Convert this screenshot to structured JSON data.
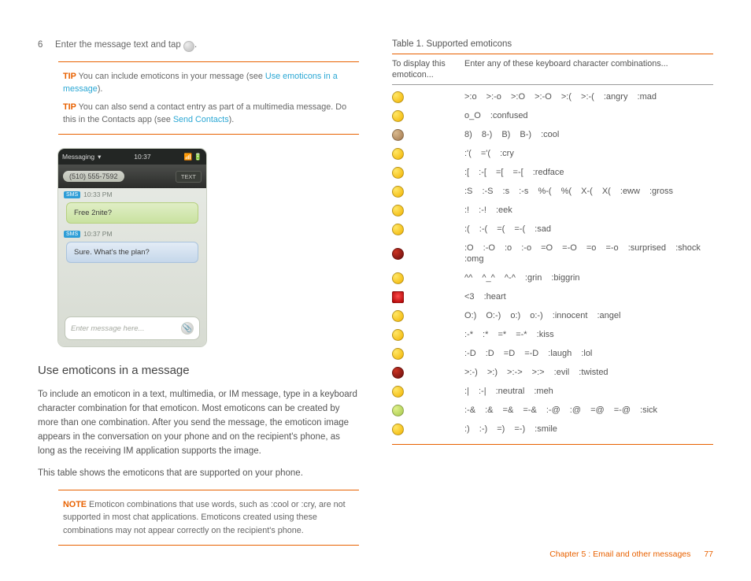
{
  "left": {
    "step_num": "6",
    "step_text_a": "Enter the message text and tap ",
    "step_text_b": ".",
    "tip1": {
      "label": "TIP",
      "text_a": "You can include emoticons in your message (see ",
      "link": "Use emoticons in a message",
      "text_b": ")."
    },
    "tip2": {
      "label": "TIP",
      "text_a": "You can also send a contact entry as part of a multimedia message. Do this in the Contacts app (see ",
      "link": "Send Contacts",
      "text_b": ")."
    },
    "phone": {
      "status_left": "Messaging",
      "time": "10:37",
      "phone_num": "(510) 555-7592",
      "text_btn": "TEXT",
      "ts1": "10:33 PM",
      "bubble1": "Free 2nite?",
      "ts2": "10:37 PM",
      "bubble2": "Sure. What's the plan?",
      "input_placeholder": "Enter message here...",
      "sms_badge": "SMS"
    },
    "section_title": "Use emoticons in a message",
    "para1": "To include an emoticon in a text, multimedia, or IM message, type in a keyboard character combination for that emoticon. Most emoticons can be created by more than one combination. After you send the message, the emoticon image appears in the conversation on your phone and on the recipient's phone, as long as the receiving IM application supports the image.",
    "para2": "This table shows the emoticons that are supported on your phone.",
    "note": {
      "label": "NOTE",
      "text": "Emoticon combinations that use words, such as :cool or :cry, are not supported in most chat applications. Emoticons created using these combinations may not appear correctly on the recipient's phone."
    }
  },
  "right": {
    "table_title": "Table 1.  Supported emoticons",
    "hdr_a": "To display this emoticon...",
    "hdr_b": "Enter any of these keyboard character combinations...",
    "rows": [
      {
        "color": "c-yel",
        "combo": ">:o   >:-o   >:O   >:-O   >:(   >:-(   :angry   :mad"
      },
      {
        "color": "c-yel",
        "combo": "o_O   :confused"
      },
      {
        "color": "c-brn",
        "combo": "8)   8-)   B)   B-)   :cool"
      },
      {
        "color": "c-yel",
        "combo": ":'(   ='(   :cry"
      },
      {
        "color": "c-yel",
        "combo": ":[   :-[   =[   =-[   :redface"
      },
      {
        "color": "c-yel",
        "combo": ":S   :-S   :s   :-s   %-(   %(   X-(   X(   :eww   :gross"
      },
      {
        "color": "c-yel",
        "combo": ":!   :-!   :eek"
      },
      {
        "color": "c-yel",
        "combo": ":(   :-(   =(   =-(   :sad"
      },
      {
        "color": "c-red",
        "combo": ":O   :-O   :o   :-o   =O   =-O   =o   =-o   :surprised   :shock   :omg"
      },
      {
        "color": "c-yel",
        "combo": "^^   ^_^   ^-^   :grin   :biggrin"
      },
      {
        "color": "c-hrt",
        "combo": "<3   :heart"
      },
      {
        "color": "c-yel",
        "combo": "O:)   O:-)   o:)   o:-)   :innocent   :angel"
      },
      {
        "color": "c-yel",
        "combo": ":-*   :*   =*   =-*   :kiss"
      },
      {
        "color": "c-yel",
        "combo": ":-D   :D   =D   =-D   :laugh   :lol"
      },
      {
        "color": "c-red",
        "combo": ">:-)   >:)   >:->   >:>   :evil   :twisted"
      },
      {
        "color": "c-yel",
        "combo": ":|   :-|   :neutral   :meh"
      },
      {
        "color": "c-grn",
        "combo": ":-&   :&   =&   =-&   :-@   :@   =@   =-@   :sick"
      },
      {
        "color": "c-yel",
        "combo": ":)   :-)   =)   =-)   :smile"
      }
    ]
  },
  "footer": {
    "chapter": "Chapter 5  :  Email and other messages",
    "page": "77"
  }
}
